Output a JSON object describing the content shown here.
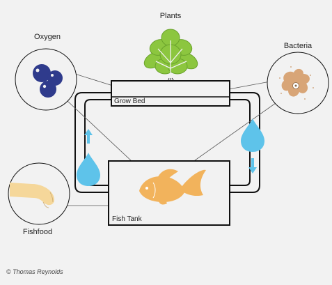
{
  "labels": {
    "plants": "Plants",
    "oxygen": "Oxygen",
    "bacteria": "Bacteria",
    "grow_bed": "Grow Bed",
    "fish_tank": "Fish Tank",
    "fishfood": "Fishfood"
  },
  "credit": "© Thomas Reynolds",
  "colors": {
    "background": "#f2f2f2",
    "water": "#5ec3ea",
    "oxygen": "#2f3b8c",
    "fish": "#f2b35c",
    "plant": "#8cc63f",
    "bacteria": "#d8a577",
    "hand": "#f5d79a",
    "outline": "#111111"
  }
}
